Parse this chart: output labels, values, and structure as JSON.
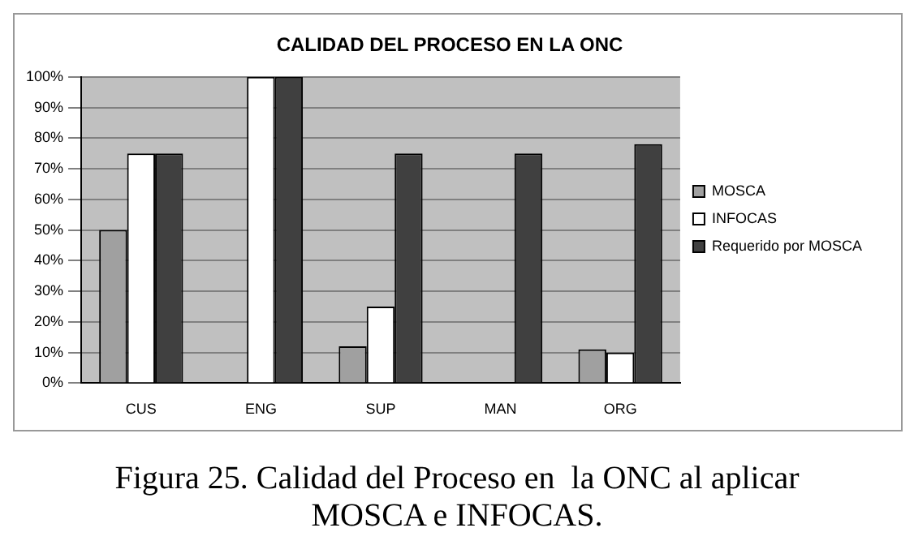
{
  "chart_data": {
    "type": "bar",
    "title": "CALIDAD DEL PROCESO EN LA ONC",
    "categories": [
      "CUS",
      "ENG",
      "SUP",
      "MAN",
      "ORG"
    ],
    "series": [
      {
        "name": "MOSCA",
        "color": "#a0a0a0",
        "values": [
          50,
          0,
          12,
          0,
          11
        ]
      },
      {
        "name": "INFOCAS",
        "color": "#ffffff",
        "values": [
          75,
          100,
          25,
          0,
          10
        ]
      },
      {
        "name": "Requerido por MOSCA",
        "color": "#404040",
        "values": [
          75,
          100,
          75,
          75,
          78
        ]
      }
    ],
    "ylim": [
      0,
      100
    ],
    "yticks": [
      {
        "value": 0,
        "label": "0%"
      },
      {
        "value": 10,
        "label": "10%"
      },
      {
        "value": 20,
        "label": "20%"
      },
      {
        "value": 30,
        "label": "30%"
      },
      {
        "value": 40,
        "label": "40%"
      },
      {
        "value": 50,
        "label": "50%"
      },
      {
        "value": 60,
        "label": "60%"
      },
      {
        "value": 70,
        "label": "70%"
      },
      {
        "value": 80,
        "label": "80%"
      },
      {
        "value": 90,
        "label": "90%"
      },
      {
        "value": 100,
        "label": "100%"
      }
    ],
    "grid": "y",
    "legend": "right",
    "annotations": [
      "Figura 25. Calidad del Proceso en  la ONC al aplicar MOSCA e INFOCAS."
    ]
  }
}
